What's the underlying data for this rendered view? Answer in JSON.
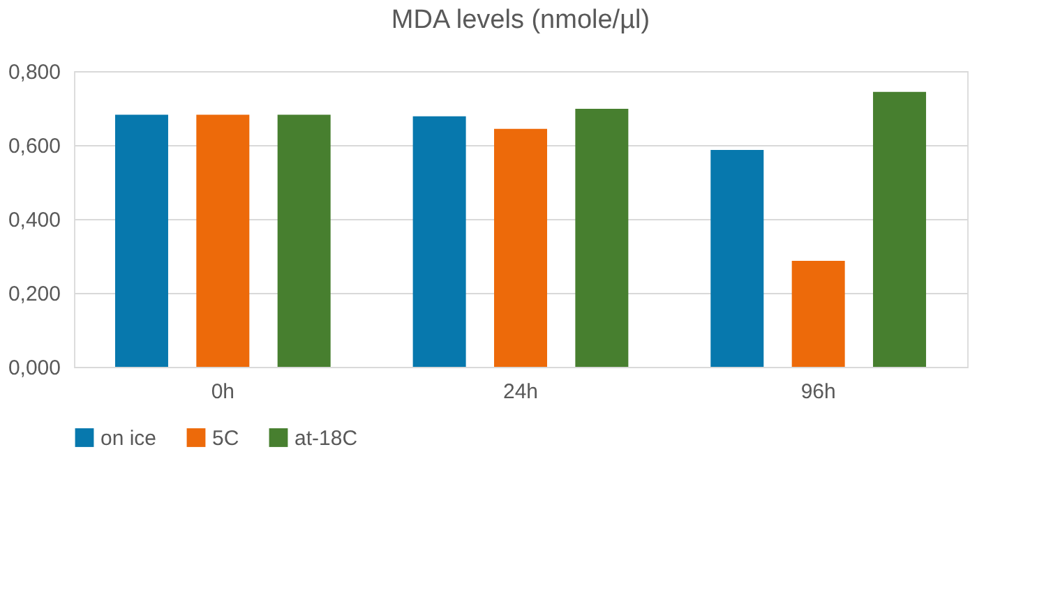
{
  "chart_data": {
    "type": "bar",
    "title": "MDA levels (nmole/µl)",
    "categories": [
      "0h",
      "24h",
      "96h"
    ],
    "series": [
      {
        "name": "on ice",
        "color": "#0778ad",
        "values": [
          0.682,
          0.678,
          0.587
        ]
      },
      {
        "name": "5C",
        "color": "#ed6a0a",
        "values": [
          0.682,
          0.644,
          0.287
        ]
      },
      {
        "name": "at-18C",
        "color": "#477f2f",
        "values": [
          0.682,
          0.698,
          0.744
        ]
      }
    ],
    "ylim": [
      0,
      0.8
    ],
    "yticks": [
      {
        "value": 0,
        "label": "0,000"
      },
      {
        "value": 0.2,
        "label": "0,200"
      },
      {
        "value": 0.4,
        "label": "0,400"
      },
      {
        "value": 0.6,
        "label": "0,600"
      },
      {
        "value": 0.8,
        "label": "0,800"
      }
    ],
    "grid": "y",
    "legend": "bottom"
  }
}
